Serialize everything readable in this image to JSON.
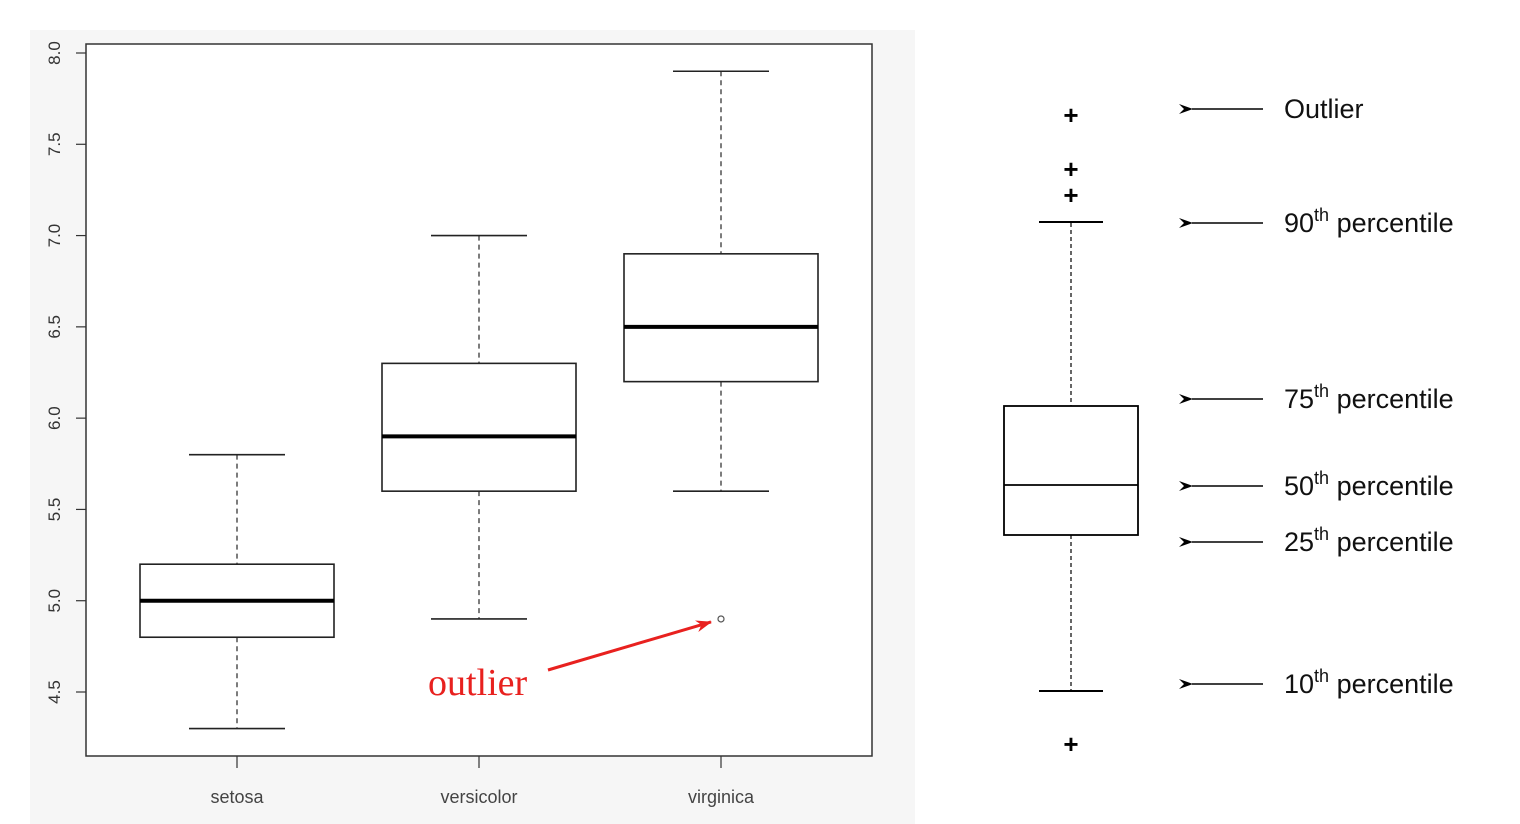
{
  "chart_data": [
    {
      "type": "box",
      "title": "",
      "xlabel": "",
      "ylabel": "",
      "categories": [
        "setosa",
        "versicolor",
        "virginica"
      ],
      "yticks": [
        "4.5",
        "5.0",
        "5.5",
        "6.0",
        "6.5",
        "7.0",
        "7.5",
        "8.0"
      ],
      "ylim": [
        4.2,
        8.05
      ],
      "boxes": [
        {
          "name": "setosa",
          "whisker_low": 4.3,
          "q1": 4.8,
          "median": 5.0,
          "q3": 5.2,
          "whisker_high": 5.8,
          "outliers": []
        },
        {
          "name": "versicolor",
          "whisker_low": 4.9,
          "q1": 5.6,
          "median": 5.9,
          "q3": 6.3,
          "whisker_high": 7.0,
          "outliers": []
        },
        {
          "name": "virginica",
          "whisker_low": 5.6,
          "q1": 6.2,
          "median": 6.5,
          "q3": 6.9,
          "whisker_high": 7.9,
          "outliers": [
            4.9
          ]
        }
      ],
      "annotation": {
        "text": "outlier",
        "color": "#e8211f",
        "target_category": "virginica",
        "target_value": 4.9
      },
      "colors": {
        "box": "#000000",
        "annotation": "#e8211f"
      }
    },
    {
      "type": "box",
      "title": "",
      "legend": [
        {
          "base": "Outlier",
          "sup": "",
          "suffix": ""
        },
        {
          "base": "90",
          "sup": "th",
          "suffix": " percentile"
        },
        {
          "base": "75",
          "sup": "th",
          "suffix": " percentile"
        },
        {
          "base": "50",
          "sup": "th",
          "suffix": " percentile"
        },
        {
          "base": "25",
          "sup": "th",
          "suffix": " percentile"
        },
        {
          "base": "10",
          "sup": "th",
          "suffix": " percentile"
        }
      ],
      "outlier_marker": "+"
    }
  ]
}
